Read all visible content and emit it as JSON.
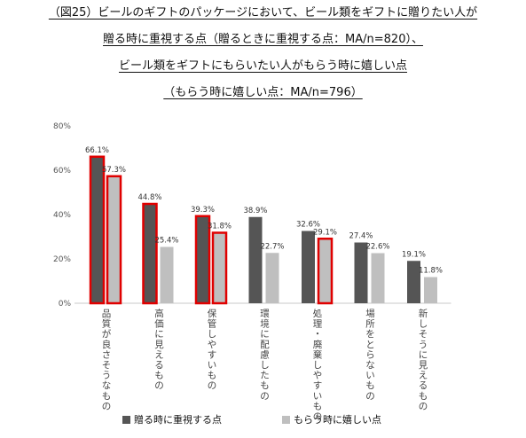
{
  "title_lines": [
    "（図25）ビールのギフトのパッケージにおいて、ビール類をギフトに贈りたい人が",
    "贈る時に重視する点（贈るときに重視する点：MA/n=820）、",
    "ビール類をギフトにもらいたい人がもらう時に嬉しい点",
    "（もらう時に嬉しい点：MA/n=796）"
  ],
  "chart_data": {
    "type": "bar",
    "categories": [
      "品質が良さそうなもの",
      "高価に見えるもの",
      "保管しやすいもの",
      "環境に配慮したもの",
      "処理・廃棄しやすいもの",
      "場所をとらないもの",
      "新しそうに見えるもの"
    ],
    "series": [
      {
        "name": "贈る時に重視する点",
        "values": [
          66.1,
          44.8,
          39.3,
          38.9,
          32.6,
          27.4,
          19.1
        ],
        "labels": [
          "66.1%",
          "44.8%",
          "39.3%",
          "38.9%",
          "32.6%",
          "27.4%",
          "19.1%"
        ],
        "color": "#555555",
        "highlight": [
          true,
          true,
          true,
          false,
          false,
          false,
          false
        ]
      },
      {
        "name": "もらう時に嬉しい点",
        "values": [
          57.3,
          25.4,
          31.8,
          22.7,
          29.1,
          22.6,
          11.8
        ],
        "labels": [
          "57.3%",
          "25.4%",
          "31.8%",
          "22.7%",
          "29.1%",
          "22.6%",
          "11.8%"
        ],
        "color": "#bfbfbf",
        "highlight": [
          true,
          false,
          true,
          false,
          true,
          false,
          false
        ]
      }
    ],
    "yticks": [
      "0%",
      "20%",
      "40%",
      "60%",
      "80%"
    ],
    "ylim": [
      0,
      80
    ],
    "highlight_color": "#e00000",
    "legend_position": "bottom",
    "grid": false
  }
}
